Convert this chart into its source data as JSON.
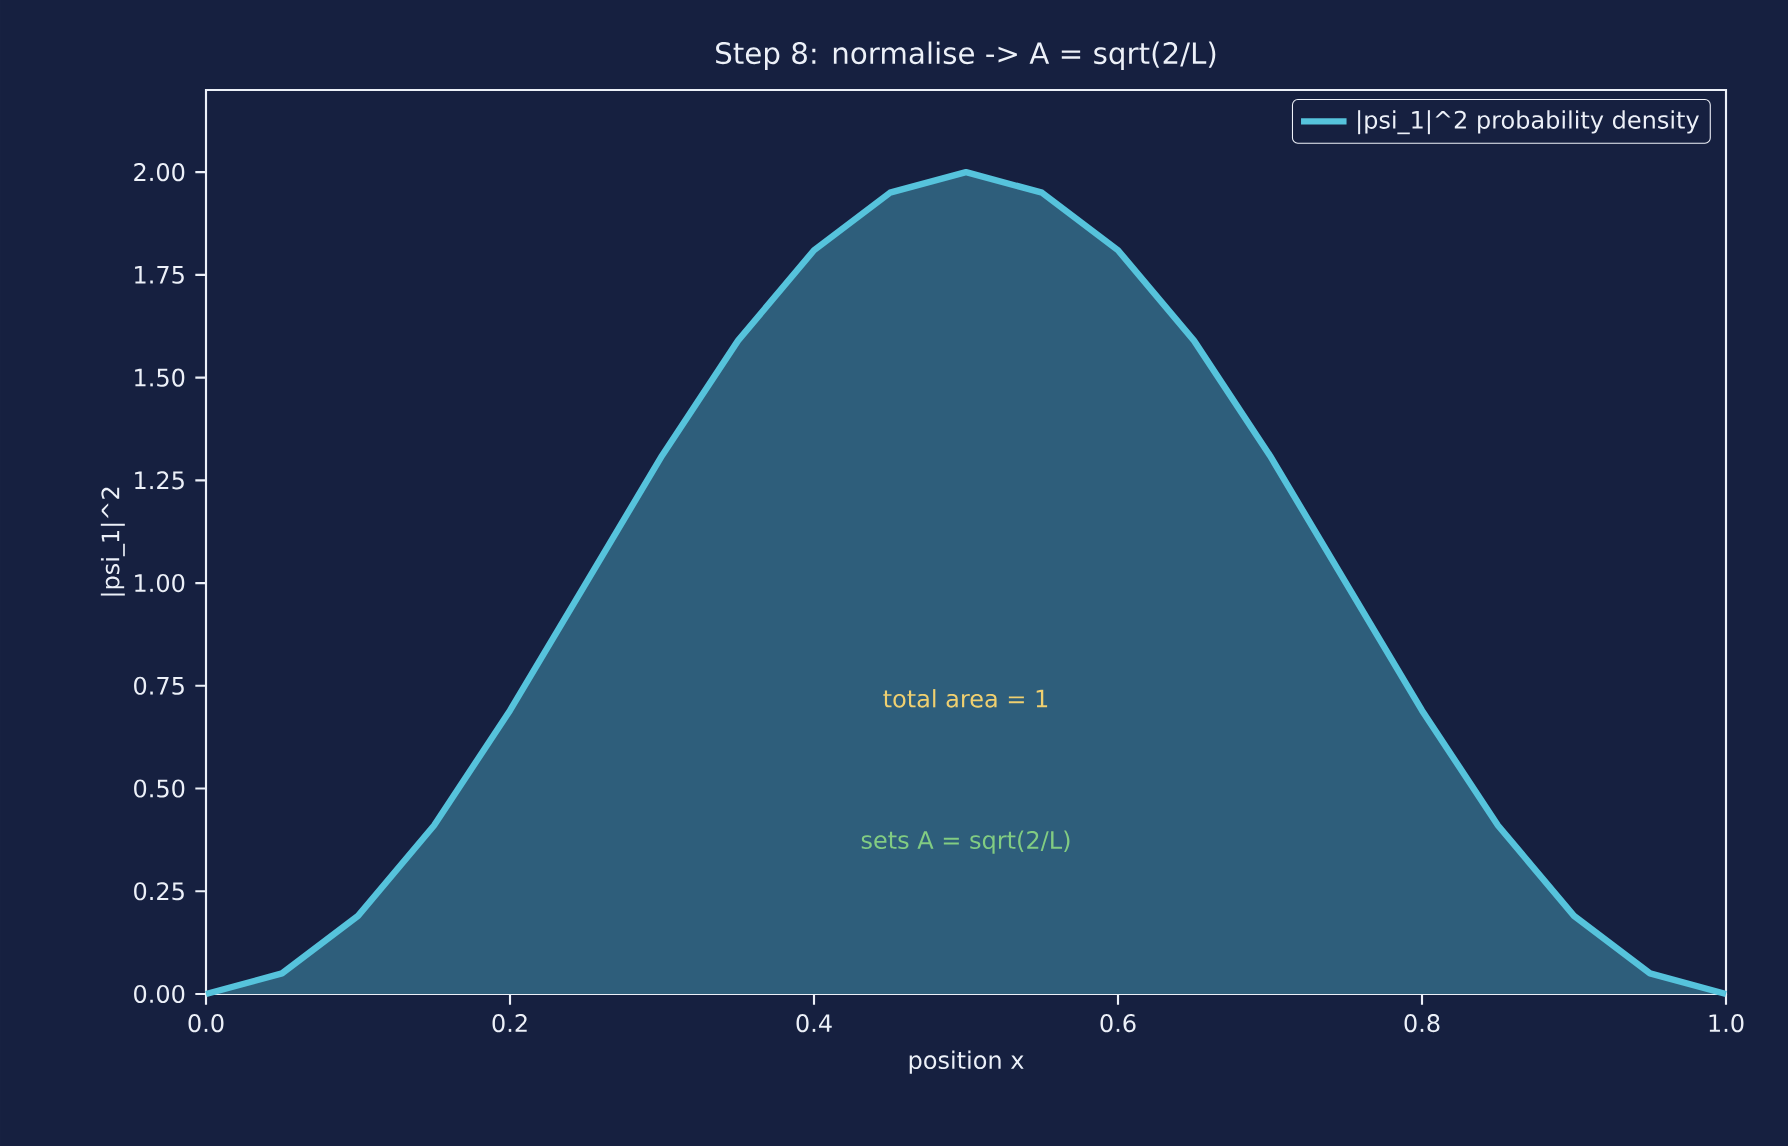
{
  "chart_data": {
    "type": "area",
    "title": "Step 8: normalise -> A = sqrt(2/L)",
    "xlabel": "position x",
    "ylabel": "|psi_1|^2",
    "x": [
      0,
      0.05,
      0.1,
      0.15,
      0.2,
      0.25,
      0.3,
      0.35,
      0.4,
      0.45,
      0.5,
      0.55,
      0.6,
      0.65,
      0.7,
      0.75,
      0.8,
      0.85,
      0.9,
      0.95,
      1.0
    ],
    "series": [
      {
        "name": "|psi_1|^2  probability density",
        "color": "#56c3dc",
        "values": [
          0,
          0.05,
          0.19,
          0.41,
          0.69,
          1.0,
          1.31,
          1.59,
          1.81,
          1.95,
          2.0,
          1.95,
          1.81,
          1.59,
          1.31,
          1.0,
          0.69,
          0.41,
          0.19,
          0.05,
          0
        ]
      }
    ],
    "xlim": [
      0,
      1
    ],
    "ylim": [
      0,
      2.2
    ],
    "xticks": [
      {
        "value": 0,
        "label": "0.0"
      },
      {
        "value": 0.2,
        "label": "0.2"
      },
      {
        "value": 0.4,
        "label": "0.4"
      },
      {
        "value": 0.6,
        "label": "0.6"
      },
      {
        "value": 0.8,
        "label": "0.8"
      },
      {
        "value": 1,
        "label": "1.0"
      }
    ],
    "yticks": [
      {
        "value": 0,
        "label": "0.00"
      },
      {
        "value": 0.25,
        "label": "0.25"
      },
      {
        "value": 0.5,
        "label": "0.50"
      },
      {
        "value": 0.75,
        "label": "0.75"
      },
      {
        "value": 1,
        "label": "1.00"
      },
      {
        "value": 1.25,
        "label": "1.25"
      },
      {
        "value": 1.5,
        "label": "1.50"
      },
      {
        "value": 1.75,
        "label": "1.75"
      },
      {
        "value": 2,
        "label": "2.00"
      }
    ],
    "annotations": [
      "total area = 1",
      "sets A = sqrt(2/L)"
    ],
    "legend": "top right",
    "grid": false,
    "line_style": "solid",
    "marker": "none"
  }
}
